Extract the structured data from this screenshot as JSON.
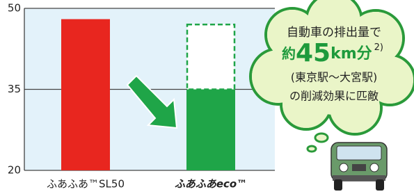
{
  "chart_data": {
    "type": "bar",
    "categories": [
      "ふあふあ™SL50",
      "ふあふあeco™"
    ],
    "values": [
      48,
      35
    ],
    "colors": [
      "#e8261f",
      "#1fa548"
    ],
    "dashed_values": [
      null,
      47
    ],
    "ylim": [
      20,
      50
    ],
    "yticks": [
      20,
      35,
      50
    ],
    "grid": true,
    "bubble": {
      "line1": "自動車の排出量で",
      "prefix": "約",
      "number": 45,
      "unit": "km分",
      "note": "2)",
      "line3": "(東京駅〜大宮駅)",
      "line4": "の削減効果に匹敵"
    }
  }
}
